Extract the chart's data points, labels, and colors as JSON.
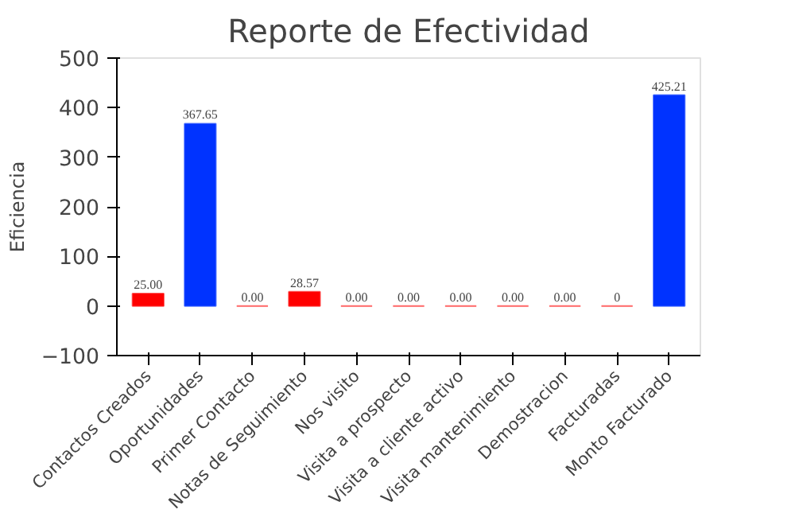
{
  "chart_data": {
    "type": "bar",
    "title": "Reporte de Efectividad",
    "ylabel": "Eficiencia",
    "categories": [
      "Contactos Creados",
      "Oportunidades",
      "Primer Contacto",
      "Notas de Seguimiento",
      "Nos visito",
      "Visita a prospecto",
      "Visita a cliente activo",
      "Visita mantenimiento",
      "Demostracion",
      "Facturadas",
      "Monto Facturado"
    ],
    "values": [
      25.0,
      367.65,
      0,
      28.57,
      0,
      0,
      0,
      0,
      0,
      0,
      425.21
    ],
    "colors": [
      "#ff0000",
      "#0033ff",
      "#ff0000",
      "#ff0000",
      "#ff0000",
      "#ff0000",
      "#ff0000",
      "#ff0000",
      "#ff0000",
      "#ff0000",
      "#0033ff"
    ],
    "value_labels": [
      "25.00",
      "367.65",
      "0.00",
      "28.57",
      "0.00",
      "0.00",
      "0.00",
      "0.00",
      "0.00",
      "0",
      "425.21"
    ],
    "ylim": [
      -100,
      500
    ],
    "yticks": [
      -100,
      0,
      100,
      200,
      300,
      400,
      500
    ],
    "grid": false
  }
}
